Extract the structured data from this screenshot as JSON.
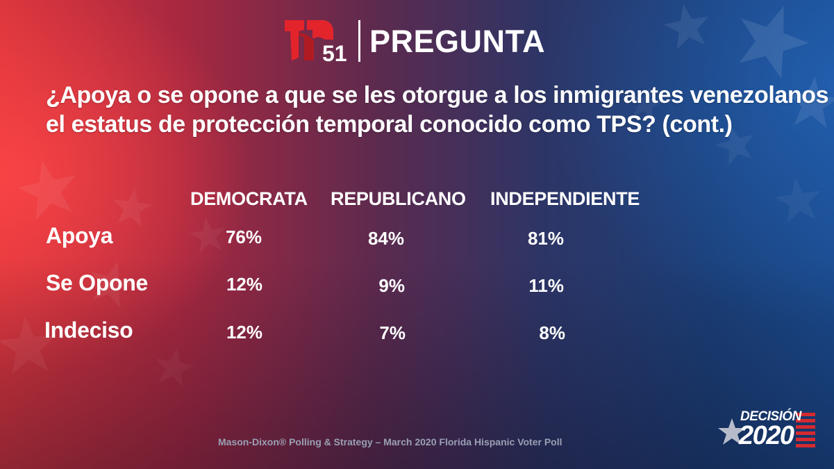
{
  "header": {
    "logo_number": "51",
    "title": "PREGUNTA"
  },
  "question": {
    "line1": "¿Apoya o se opone a que se les otorgue a los inmigrantes venezolanos",
    "line2": "el estatus de protección temporal conocido como TPS?  (cont.)"
  },
  "chart_data": {
    "type": "table",
    "columns": [
      "DEMOCRATA",
      "REPUBLICANO",
      "INDEPENDIENTE"
    ],
    "rows": [
      {
        "label": "Apoya",
        "values": [
          "76%",
          "84%",
          "81%"
        ]
      },
      {
        "label": "Se Opone",
        "values": [
          "12%",
          "9%",
          "11%"
        ]
      },
      {
        "label": "Indeciso",
        "values": [
          "12%",
          "7%",
          "8%"
        ]
      }
    ]
  },
  "source": "Mason-Dixon® Polling & Strategy – March 2020 Florida Hispanic Voter Poll",
  "badge": {
    "top": "DECISIÓN",
    "year": "2020"
  },
  "colors": {
    "logo_red": "#e3242b",
    "badge_red": "#d42a30",
    "badge_blue": "#1d3a7a"
  }
}
